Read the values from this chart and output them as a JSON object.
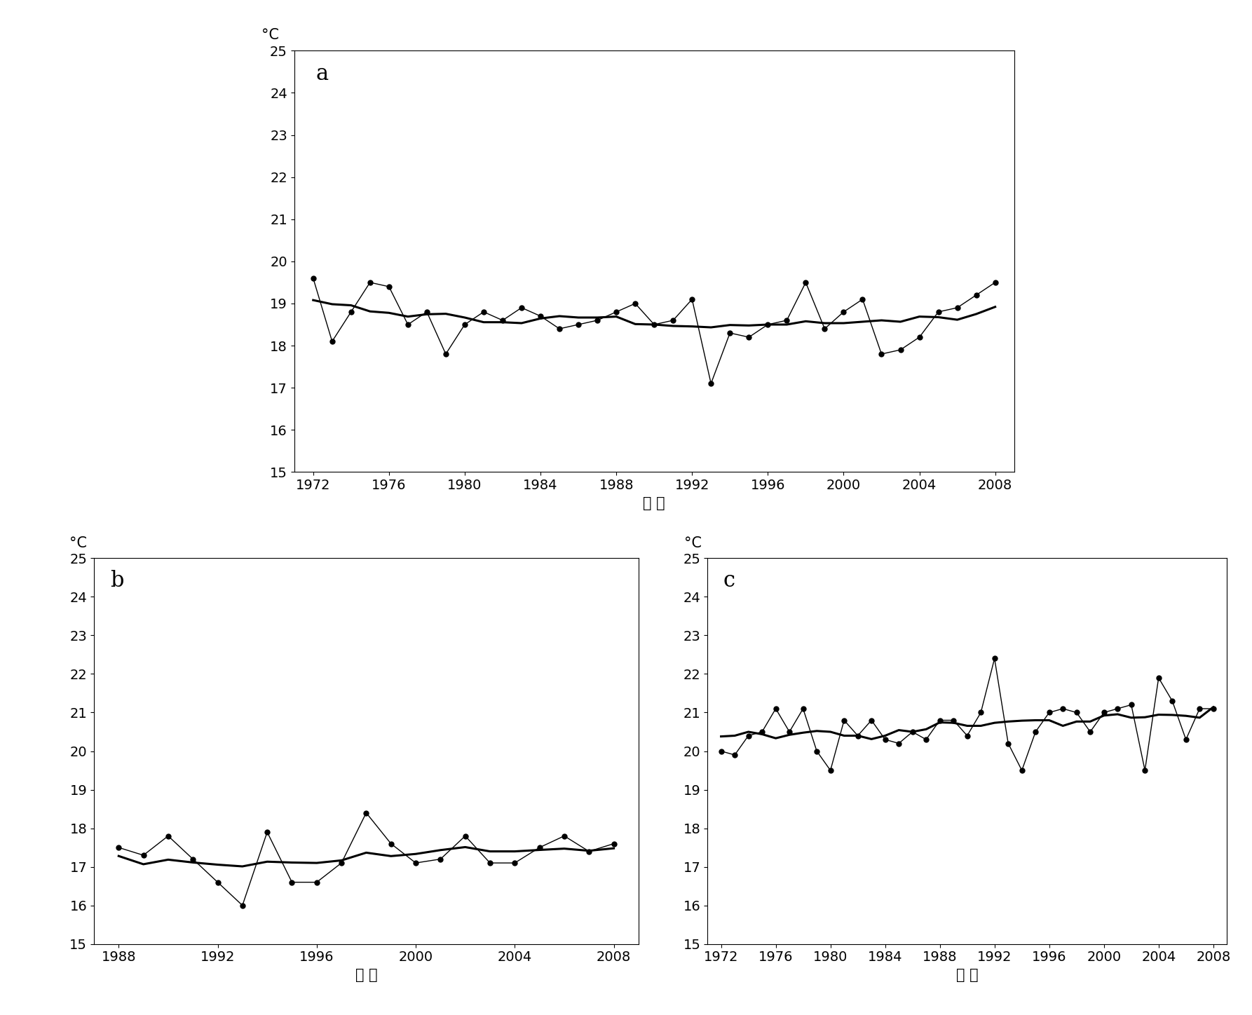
{
  "panel_a": {
    "label": "a",
    "years": [
      1972,
      1973,
      1974,
      1975,
      1976,
      1977,
      1978,
      1979,
      1980,
      1981,
      1982,
      1983,
      1984,
      1985,
      1986,
      1987,
      1988,
      1989,
      1990,
      1991,
      1992,
      1993,
      1994,
      1995,
      1996,
      1997,
      1998,
      1999,
      2000,
      2001,
      2002,
      2003,
      2004,
      2005,
      2006,
      2007,
      2008
    ],
    "temps": [
      19.6,
      18.1,
      18.8,
      19.5,
      19.4,
      18.5,
      18.8,
      17.8,
      18.5,
      18.8,
      18.6,
      18.9,
      18.7,
      18.4,
      18.5,
      18.6,
      18.8,
      19.0,
      18.5,
      18.6,
      19.1,
      17.1,
      18.3,
      18.2,
      18.5,
      18.6,
      19.5,
      18.4,
      18.8,
      19.1,
      17.8,
      17.9,
      18.2,
      18.8,
      18.9,
      19.2,
      19.5
    ],
    "xlim": [
      1971,
      2009
    ],
    "xticks": [
      1972,
      1976,
      1980,
      1984,
      1988,
      1992,
      1996,
      2000,
      2004,
      2008
    ],
    "ylim": [
      15,
      25
    ],
    "yticks": [
      15,
      16,
      17,
      18,
      19,
      20,
      21,
      22,
      23,
      24,
      25
    ],
    "ylabel": "°C",
    "xlabel": "연 도"
  },
  "panel_b": {
    "label": "b",
    "years": [
      1988,
      1989,
      1990,
      1991,
      1992,
      1993,
      1994,
      1995,
      1996,
      1997,
      1998,
      1999,
      2000,
      2001,
      2002,
      2003,
      2004,
      2005,
      2006,
      2007,
      2008
    ],
    "temps": [
      17.5,
      17.3,
      17.8,
      17.2,
      16.6,
      16.0,
      17.9,
      16.6,
      16.6,
      17.1,
      18.4,
      17.6,
      17.1,
      17.2,
      17.8,
      17.1,
      17.1,
      17.5,
      17.8,
      17.4,
      17.6
    ],
    "xlim": [
      1987,
      2009
    ],
    "xticks": [
      1988,
      1992,
      1996,
      2000,
      2004,
      2008
    ],
    "ylim": [
      15,
      25
    ],
    "yticks": [
      15,
      16,
      17,
      18,
      19,
      20,
      21,
      22,
      23,
      24,
      25
    ],
    "ylabel": "°C",
    "xlabel": "연 도"
  },
  "panel_c": {
    "label": "c",
    "years": [
      1972,
      1973,
      1974,
      1975,
      1976,
      1977,
      1978,
      1979,
      1980,
      1981,
      1982,
      1983,
      1984,
      1985,
      1986,
      1987,
      1988,
      1989,
      1990,
      1991,
      1992,
      1993,
      1994,
      1995,
      1996,
      1997,
      1998,
      1999,
      2000,
      2001,
      2002,
      2003,
      2004,
      2005,
      2006,
      2007,
      2008
    ],
    "temps": [
      20.0,
      19.9,
      20.4,
      20.5,
      21.1,
      20.5,
      21.1,
      20.0,
      19.5,
      20.8,
      20.4,
      20.8,
      20.3,
      20.2,
      20.5,
      20.3,
      20.8,
      20.8,
      20.4,
      21.0,
      22.4,
      20.2,
      19.5,
      20.5,
      21.0,
      21.1,
      21.0,
      20.5,
      21.0,
      21.1,
      21.2,
      19.5,
      21.9,
      21.3,
      20.3,
      21.1,
      21.1
    ],
    "xlim": [
      1971,
      2009
    ],
    "xticks": [
      1972,
      1976,
      1980,
      1984,
      1988,
      1992,
      1996,
      2000,
      2004,
      2008
    ],
    "ylim": [
      15,
      25
    ],
    "yticks": [
      15,
      16,
      17,
      18,
      19,
      20,
      21,
      22,
      23,
      24,
      25
    ],
    "ylabel": "°C",
    "xlabel": "연 도"
  },
  "line_color": "#000000",
  "marker": "o",
  "markersize": 5,
  "trend_linewidth": 2.2,
  "data_linewidth": 1.0,
  "background_color": "#ffffff",
  "label_fontsize": 22,
  "tick_fontsize": 14,
  "axis_label_fontsize": 15
}
